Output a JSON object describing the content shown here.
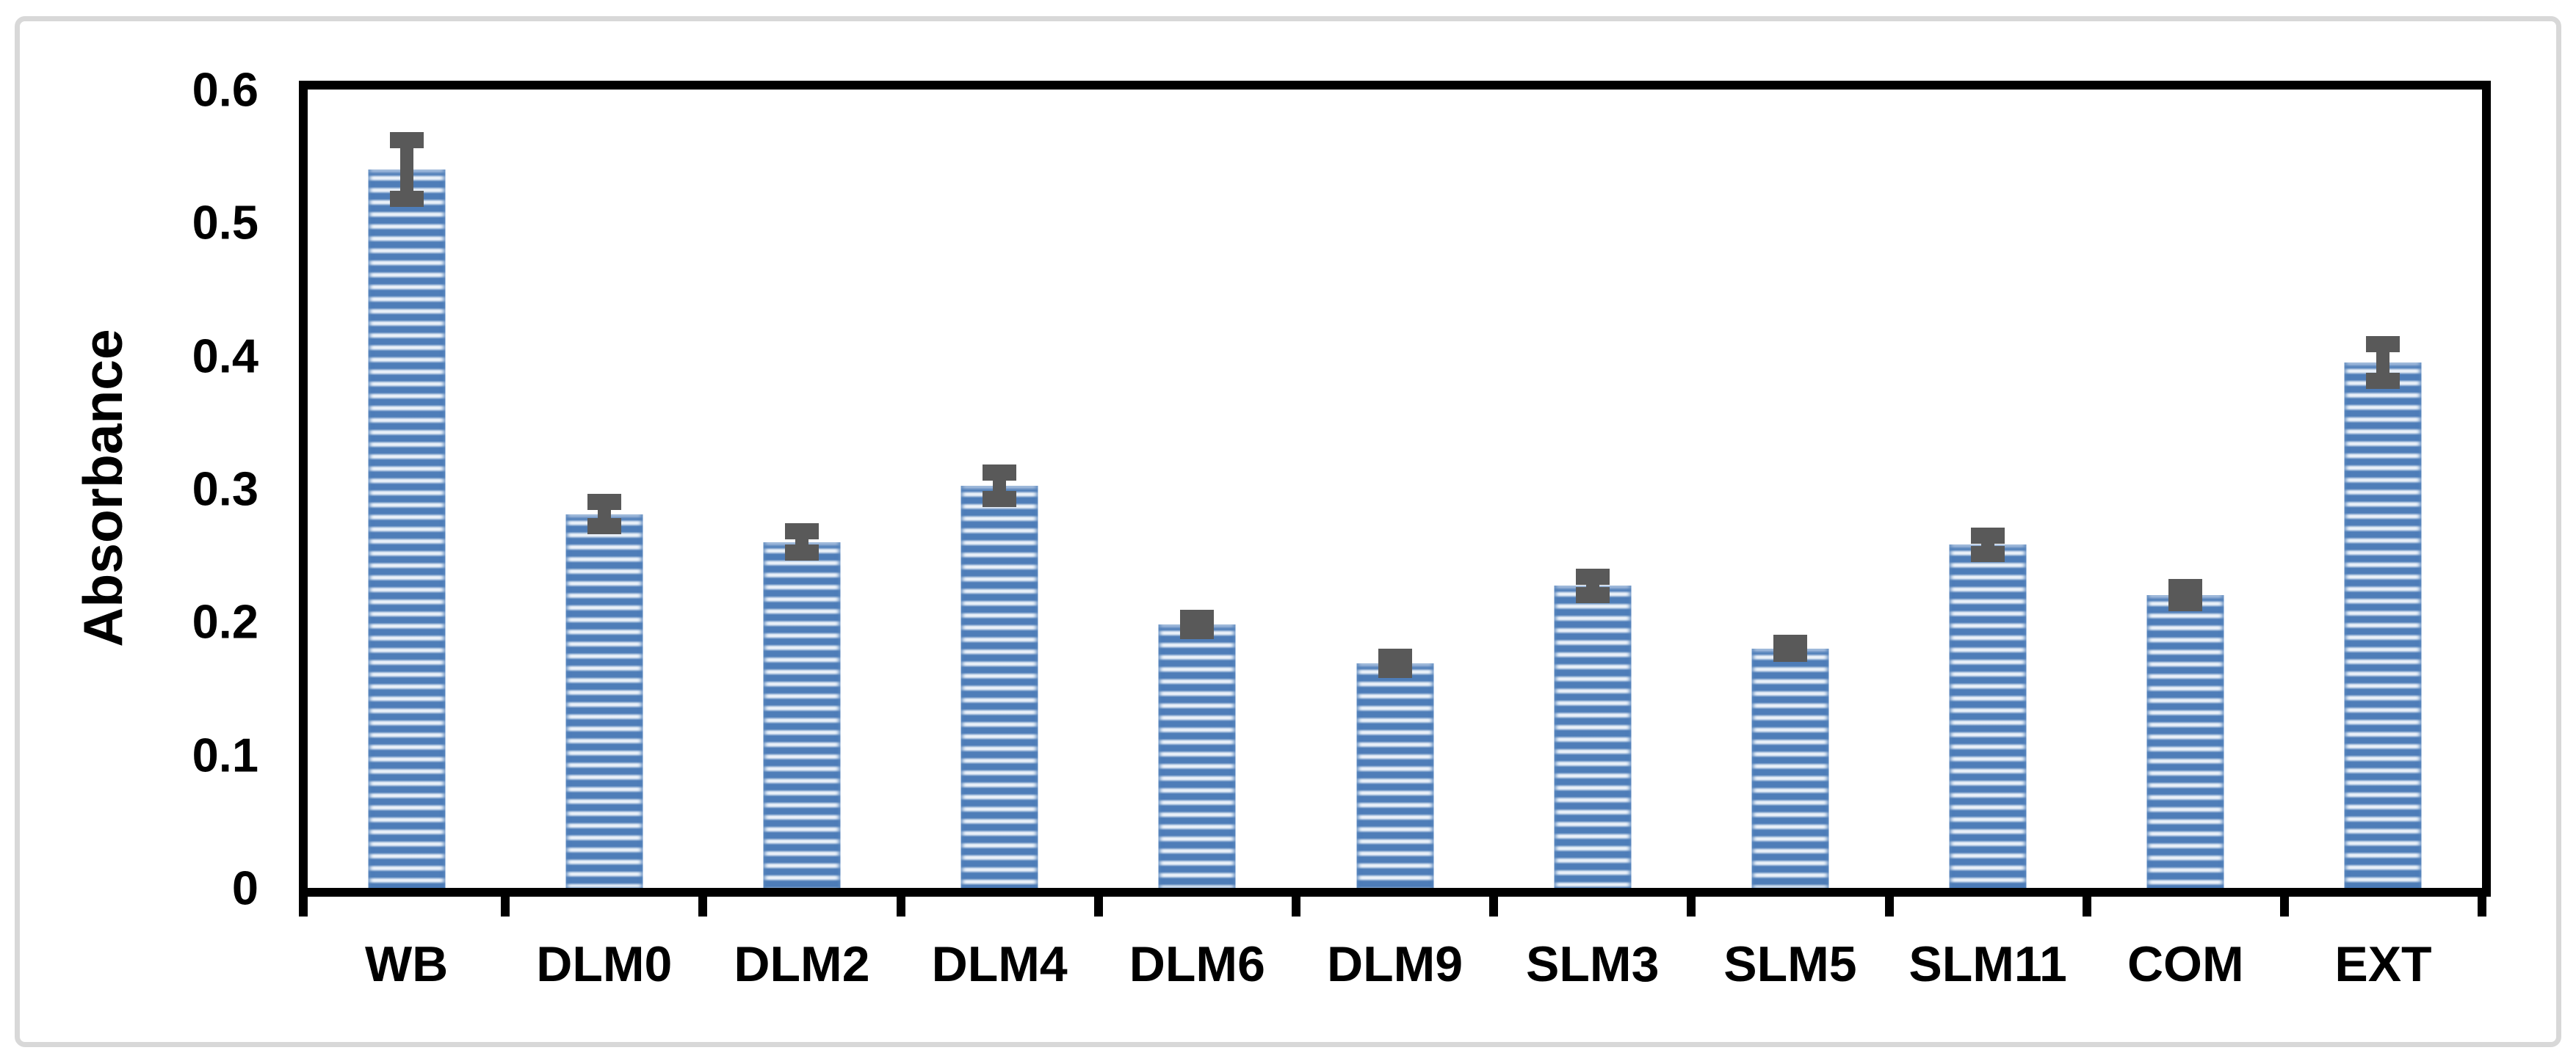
{
  "figure": {
    "background_color": "#ffffff",
    "frame_color": "#d8d8d8"
  },
  "chart_data": {
    "type": "bar",
    "title": "",
    "xlabel": "",
    "ylabel": "Absorbance",
    "ylim": [
      0,
      0.6
    ],
    "ytick_labels": [
      "0",
      "0.1",
      "0.2",
      "0.3",
      "0.4",
      "0.5",
      "0.6"
    ],
    "ytick_values": [
      0,
      0.1,
      0.2,
      0.3,
      0.4,
      0.5,
      0.6
    ],
    "grid": false,
    "legend": "none",
    "categories": [
      "WB",
      "DLM0",
      "DLM2",
      "DLM4",
      "DLM6",
      "DLM9",
      "SLM3",
      "SLM5",
      "SLM11",
      "COM",
      "EXT"
    ],
    "values": [
      0.54,
      0.281,
      0.26,
      0.302,
      0.198,
      0.169,
      0.227,
      0.18,
      0.258,
      0.22,
      0.395
    ],
    "errors": [
      0.028,
      0.015,
      0.014,
      0.016,
      0.011,
      0.011,
      0.013,
      0.01,
      0.013,
      0.012,
      0.02
    ],
    "bar_fill_pattern": "horizontal-stripes",
    "colors": {
      "stripe_dark": "#4e7db8",
      "stripe_light": "#e9f0f8",
      "error_bar": "#595959",
      "axis": "#000000",
      "text": "#000000"
    }
  }
}
